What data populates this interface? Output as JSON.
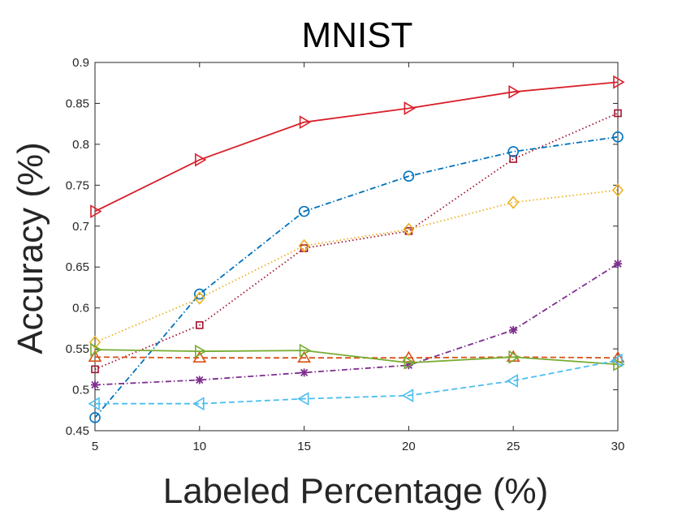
{
  "chart_data": {
    "type": "line",
    "title": "MNIST",
    "xlabel": "Labeled Percentage (%)",
    "ylabel": "Accuracy (%)",
    "xlim": [
      5,
      30
    ],
    "ylim": [
      0.45,
      0.9
    ],
    "x": [
      5,
      10,
      15,
      20,
      25,
      30
    ],
    "xticks": [
      "5",
      "10",
      "15",
      "20",
      "25",
      "30"
    ],
    "yticks": [
      "0.45",
      "0.5",
      "0.55",
      "0.6",
      "0.65",
      "0.7",
      "0.75",
      "0.8",
      "0.85",
      "0.9"
    ],
    "grid": false,
    "series": [
      {
        "marker": "triangle-right",
        "color": "#d9202a",
        "dash": "solid",
        "values": [
          0.718,
          0.781,
          0.827,
          0.844,
          0.864,
          0.876
        ]
      },
      {
        "marker": "square",
        "color": "#a2142f",
        "dash": "dotted",
        "values": [
          0.525,
          0.579,
          0.673,
          0.694,
          0.782,
          0.838
        ]
      },
      {
        "marker": "circle",
        "color": "#0072bd",
        "dash": "dashdot",
        "values": [
          0.466,
          0.617,
          0.718,
          0.761,
          0.791,
          0.809
        ]
      },
      {
        "marker": "diamond",
        "color": "#edb120",
        "dash": "dotted",
        "values": [
          0.558,
          0.612,
          0.676,
          0.696,
          0.729,
          0.744
        ]
      },
      {
        "marker": "asterisk",
        "color": "#7e2f8e",
        "dash": "dashdot",
        "values": [
          0.506,
          0.512,
          0.521,
          0.53,
          0.573,
          0.654
        ]
      },
      {
        "marker": "triangle-up",
        "color": "#d95319",
        "dash": "dashed",
        "values": [
          0.54,
          0.539,
          0.539,
          0.539,
          0.54,
          0.539
        ]
      },
      {
        "marker": "triangle-right",
        "color": "#77ac30",
        "dash": "solid",
        "values": [
          0.549,
          0.547,
          0.548,
          0.533,
          0.54,
          0.531
        ]
      },
      {
        "marker": "triangle-left",
        "color": "#4dbeee",
        "dash": "dashed",
        "values": [
          0.483,
          0.483,
          0.489,
          0.493,
          0.511,
          0.536
        ]
      }
    ]
  }
}
